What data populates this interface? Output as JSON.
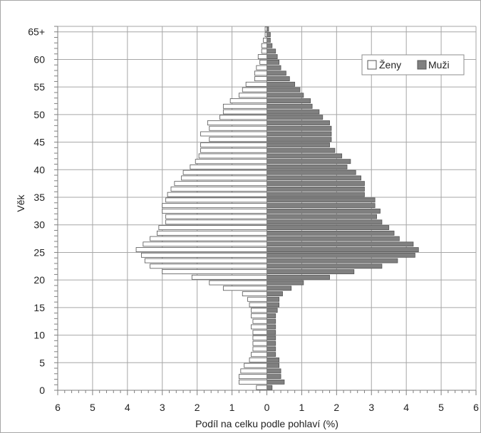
{
  "chart_data": {
    "type": "bar",
    "orientation": "horizontal",
    "subtype": "population-pyramid",
    "title": "",
    "xlabel": "Podíl na celku podle pohlaví (%)",
    "ylabel": "Věk",
    "xlim": [
      -6,
      6
    ],
    "x_tick_values": [
      -6,
      -5,
      -4,
      -3,
      -2,
      -1,
      0,
      1,
      2,
      3,
      4,
      5,
      6
    ],
    "x_tick_labels": [
      "6",
      "5",
      "4",
      "3",
      "2",
      "1",
      "0",
      "1",
      "2",
      "3",
      "4",
      "5",
      "6"
    ],
    "y_tick_values": [
      0,
      5,
      10,
      15,
      20,
      25,
      30,
      35,
      40,
      45,
      50,
      55,
      60,
      65
    ],
    "y_tick_labels": [
      "0",
      "5",
      "10",
      "15",
      "20",
      "25",
      "30",
      "35",
      "40",
      "45",
      "50",
      "55",
      "60",
      "65+"
    ],
    "grid": true,
    "legend_position": "top-right",
    "colors": {
      "zeny": "#ffffff",
      "muzi": "#808080",
      "bar_edge": "#555555",
      "grid": "#a6a6a6"
    },
    "categories": [
      "0",
      "1",
      "2",
      "3",
      "4",
      "5",
      "6",
      "7",
      "8",
      "9",
      "10",
      "11",
      "12",
      "13",
      "14",
      "15",
      "16",
      "17",
      "18",
      "19",
      "20",
      "21",
      "22",
      "23",
      "24",
      "25",
      "26",
      "27",
      "28",
      "29",
      "30",
      "31",
      "32",
      "33",
      "34",
      "35",
      "36",
      "37",
      "38",
      "39",
      "40",
      "41",
      "42",
      "43",
      "44",
      "45",
      "46",
      "47",
      "48",
      "49",
      "50",
      "51",
      "52",
      "53",
      "54",
      "55",
      "56",
      "57",
      "58",
      "59",
      "60",
      "61",
      "62",
      "63",
      "64",
      "65+"
    ],
    "series": [
      {
        "name": "Ženy",
        "side": "left",
        "values": [
          0.3,
          0.8,
          0.8,
          0.75,
          0.65,
          0.5,
          0.45,
          0.4,
          0.4,
          0.4,
          0.4,
          0.45,
          0.4,
          0.45,
          0.45,
          0.5,
          0.55,
          0.7,
          1.25,
          1.65,
          2.15,
          3.0,
          3.35,
          3.5,
          3.6,
          3.75,
          3.55,
          3.35,
          3.15,
          3.1,
          2.9,
          2.9,
          3.0,
          3.0,
          2.9,
          2.85,
          2.75,
          2.65,
          2.45,
          2.4,
          2.2,
          2.05,
          1.95,
          1.9,
          1.9,
          1.65,
          1.9,
          1.65,
          1.7,
          1.35,
          1.25,
          1.25,
          1.05,
          0.8,
          0.7,
          0.6,
          0.35,
          0.35,
          0.3,
          0.2,
          0.25,
          0.15,
          0.15,
          0.1,
          0.05,
          0.05
        ]
      },
      {
        "name": "Muži",
        "side": "right",
        "values": [
          0.15,
          0.5,
          0.4,
          0.4,
          0.35,
          0.35,
          0.25,
          0.25,
          0.25,
          0.25,
          0.25,
          0.25,
          0.25,
          0.25,
          0.3,
          0.35,
          0.35,
          0.45,
          0.7,
          1.05,
          1.8,
          2.5,
          3.3,
          3.75,
          4.25,
          4.35,
          4.2,
          3.8,
          3.65,
          3.5,
          3.3,
          3.15,
          3.25,
          3.1,
          3.1,
          2.8,
          2.8,
          2.8,
          2.7,
          2.55,
          2.3,
          2.4,
          2.15,
          1.95,
          1.8,
          1.85,
          1.85,
          1.85,
          1.8,
          1.6,
          1.5,
          1.3,
          1.25,
          1.05,
          0.95,
          0.8,
          0.65,
          0.55,
          0.4,
          0.35,
          0.3,
          0.25,
          0.15,
          0.1,
          0.1,
          0.05
        ]
      }
    ]
  }
}
